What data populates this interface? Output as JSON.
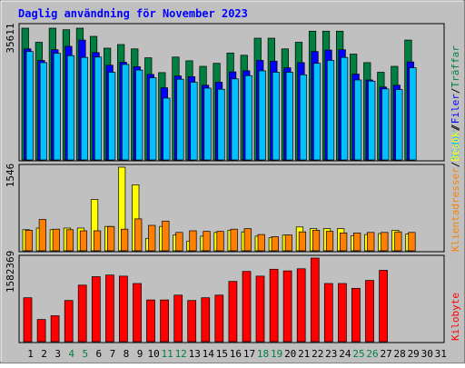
{
  "title": "Daglig användning för November 2023",
  "colors": {
    "frame_bg": "#c0c0c0",
    "plot_bg": "#c0c0c0",
    "title": "#0000ff",
    "traffar": "#008040",
    "filer": "#0000ff",
    "sidor": "#00c0ff",
    "besok": "#ffff00",
    "klientadresser": "#ff8000",
    "kilobyte": "#ff0000",
    "weekend": "#008040",
    "weekday": "#000000"
  },
  "legend": {
    "traffar": "Träffar",
    "sep1": "/",
    "filer": "Filer",
    "sep2": "/",
    "sidor": "Sidor",
    "sep3": "/",
    "besok": "Besök",
    "sep4": "/",
    "klientadresser": "Klientadresser",
    "kilobyte": "Kilobyte"
  },
  "days": [
    "1",
    "2",
    "3",
    "4",
    "5",
    "6",
    "7",
    "8",
    "9",
    "10",
    "11",
    "12",
    "13",
    "14",
    "15",
    "16",
    "17",
    "18",
    "19",
    "20",
    "21",
    "22",
    "23",
    "24",
    "25",
    "26",
    "27",
    "28",
    "29",
    "30",
    "31"
  ],
  "weekend_days": [
    4,
    5,
    11,
    12,
    18,
    19,
    25,
    26
  ],
  "chart_data": [
    {
      "type": "bar",
      "panel": "hits",
      "ylabel": "35611",
      "ylim": [
        0,
        35611
      ],
      "categories": [
        "1",
        "2",
        "3",
        "4",
        "5",
        "6",
        "7",
        "8",
        "9",
        "10",
        "11",
        "12",
        "13",
        "14",
        "15",
        "16",
        "17",
        "18",
        "19",
        "20",
        "21",
        "22",
        "23",
        "24",
        "25",
        "26",
        "27",
        "28",
        "29",
        "30",
        "31"
      ],
      "series": [
        {
          "name": "Träffar",
          "color": "#008040",
          "values": [
            35611,
            31800,
            35611,
            35200,
            35611,
            33400,
            30200,
            31200,
            30000,
            27600,
            23600,
            27800,
            26800,
            25300,
            26100,
            28900,
            28300,
            32900,
            32900,
            30000,
            31800,
            34800,
            34800,
            34800,
            28600,
            26300,
            23700,
            25300,
            32400,
            null,
            null
          ]
        },
        {
          "name": "Filer",
          "color": "#0000ff",
          "values": [
            30000,
            26900,
            29800,
            30700,
            32400,
            29000,
            25600,
            26400,
            25200,
            23100,
            19500,
            22700,
            22500,
            20200,
            21000,
            23800,
            24100,
            26900,
            26700,
            24900,
            26300,
            29300,
            29700,
            29800,
            23200,
            21600,
            19700,
            20200,
            26500,
            null,
            null
          ]
        },
        {
          "name": "Sidor",
          "color": "#00c0ff",
          "values": [
            29300,
            26300,
            28800,
            28200,
            27700,
            27800,
            23700,
            25800,
            24300,
            22200,
            16700,
            21800,
            21000,
            19400,
            19100,
            21900,
            22800,
            24100,
            23700,
            23700,
            23000,
            26100,
            26900,
            27700,
            21600,
            21300,
            19200,
            19000,
            24900,
            null,
            null
          ]
        }
      ]
    },
    {
      "type": "bar",
      "panel": "visits",
      "ylabel": "1546",
      "ylim": [
        0,
        1546
      ],
      "categories": [
        "1",
        "2",
        "3",
        "4",
        "5",
        "6",
        "7",
        "8",
        "9",
        "10",
        "11",
        "12",
        "13",
        "14",
        "15",
        "16",
        "17",
        "18",
        "19",
        "20",
        "21",
        "22",
        "23",
        "24",
        "25",
        "26",
        "27",
        "28",
        "29",
        "30",
        "31"
      ],
      "series": [
        {
          "name": "Besök",
          "color": "#ffff00",
          "values": [
            390,
            420,
            390,
            420,
            420,
            450,
            450,
            670,
            470,
            230,
            450,
            290,
            180,
            270,
            340,
            380,
            350,
            270,
            240,
            290,
            440,
            410,
            410,
            410,
            280,
            300,
            320,
            380,
            310,
            null,
            null
          ]
        },
        {
          "name": "Klientadresser",
          "color": "#ff8000",
          "values": [
            380,
            580,
            400,
            390,
            370,
            370,
            450,
            400,
            590,
            470,
            550,
            340,
            370,
            360,
            360,
            400,
            410,
            300,
            260,
            290,
            350,
            380,
            360,
            330,
            330,
            340,
            340,
            350,
            340,
            null,
            null
          ]
        }
      ],
      "peak_besok": [
        null,
        null,
        null,
        null,
        null,
        950,
        null,
        1546,
        1220,
        null,
        null,
        null,
        null,
        null,
        null,
        null,
        null,
        null,
        null,
        null,
        null,
        null,
        null,
        null,
        null,
        null,
        null,
        null,
        null,
        null,
        null
      ]
    },
    {
      "type": "bar",
      "panel": "kilobytes",
      "ylabel": "1582369",
      "ylim": [
        0,
        1582369
      ],
      "categories": [
        "1",
        "2",
        "3",
        "4",
        "5",
        "6",
        "7",
        "8",
        "9",
        "10",
        "11",
        "12",
        "13",
        "14",
        "15",
        "16",
        "17",
        "18",
        "19",
        "20",
        "21",
        "22",
        "23",
        "24",
        "25",
        "26",
        "27",
        "28",
        "29",
        "30",
        "31"
      ],
      "series": [
        {
          "name": "Kilobyte",
          "color": "#ff0000",
          "values": [
            830000,
            420000,
            490000,
            780000,
            1070000,
            1230000,
            1260000,
            1240000,
            1100000,
            790000,
            790000,
            880000,
            780000,
            830000,
            880000,
            1140000,
            1330000,
            1240000,
            1370000,
            1340000,
            1380000,
            1582369,
            1100000,
            1100000,
            1010000,
            1160000,
            1350000,
            null,
            null,
            null,
            null
          ]
        }
      ]
    }
  ]
}
